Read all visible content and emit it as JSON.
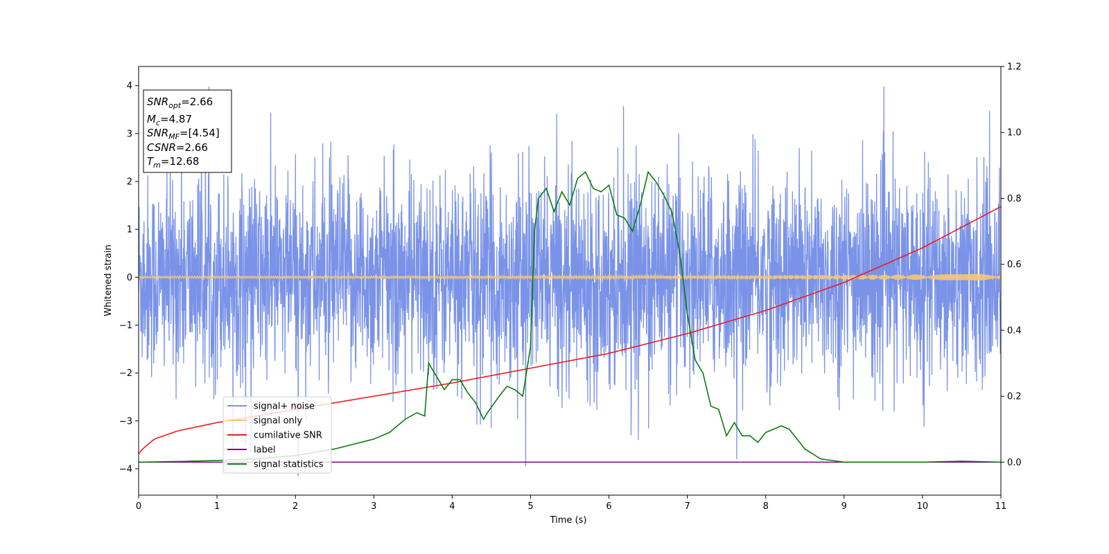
{
  "chart_data": {
    "type": "line",
    "xlabel": "Time (s)",
    "ylabel": "Whitened strain",
    "xlim": [
      0,
      11
    ],
    "ylim": [
      -4.55,
      4.4
    ],
    "y2lim": [
      -0.1,
      1.2
    ],
    "grid": false,
    "legend_position": "lower-left",
    "x_ticks": [
      "0",
      "1",
      "2",
      "3",
      "4",
      "5",
      "6",
      "7",
      "8",
      "9",
      "10",
      "11"
    ],
    "y_ticks": [
      "−4",
      "−3",
      "−2",
      "−1",
      "0",
      "1",
      "2",
      "3",
      "4"
    ],
    "y_tick_values": [
      -4,
      -3,
      -2,
      -1,
      0,
      1,
      2,
      3,
      4
    ],
    "y2_ticks": [
      "0.0",
      "0.2",
      "0.4",
      "0.6",
      "0.8",
      "1.0",
      "1.2"
    ],
    "y2_tick_values": [
      0.0,
      0.2,
      0.4,
      0.6,
      0.8,
      1.0,
      1.2
    ],
    "annotation": {
      "lines": [
        {
          "main": "SNR",
          "sub": "opt",
          "rest": "=2.66"
        },
        {
          "main": "M",
          "sub": "c",
          "rest": "=4.87"
        },
        {
          "main": "SNR",
          "sub": "MF",
          "rest": "=[4.54]"
        },
        {
          "main": "CSNR",
          "sub": "",
          "rest": "=2.66"
        },
        {
          "main": "T",
          "sub": "m",
          "rest": "=12.68"
        }
      ]
    },
    "series": [
      {
        "name": "signal+ noise",
        "axis": "left",
        "color": "#7a93e8",
        "style": "noise",
        "approx_range": [
          -4.15,
          3.98
        ]
      },
      {
        "name": "signal only",
        "axis": "left",
        "color": "#f7c873",
        "style": "thin-oscillation",
        "amplitude_start": 0.02,
        "amplitude_end": 0.07
      },
      {
        "name": "cumilative SNR",
        "axis": "right",
        "color": "#ee1c1c",
        "x": [
          0,
          0.05,
          0.2,
          0.5,
          1,
          2,
          3,
          4,
          5,
          6,
          7,
          8,
          9,
          10,
          11
        ],
        "y": [
          0.025,
          0.04,
          0.07,
          0.095,
          0.12,
          0.16,
          0.2,
          0.24,
          0.285,
          0.33,
          0.39,
          0.46,
          0.545,
          0.65,
          0.775
        ]
      },
      {
        "name": "label",
        "axis": "right",
        "color": "#800080",
        "x": [
          0,
          11
        ],
        "y": [
          0.0,
          0.0
        ]
      },
      {
        "name": "signal statistics",
        "axis": "right",
        "color": "#0a7a0a",
        "x": [
          0,
          0.5,
          1,
          1.5,
          2,
          2.5,
          3,
          3.2,
          3.4,
          3.55,
          3.65,
          3.7,
          3.8,
          3.9,
          4.0,
          4.1,
          4.2,
          4.3,
          4.4,
          4.45,
          4.6,
          4.7,
          4.8,
          4.9,
          5.0,
          5.05,
          5.1,
          5.2,
          5.3,
          5.4,
          5.5,
          5.6,
          5.7,
          5.8,
          5.9,
          6.0,
          6.1,
          6.2,
          6.3,
          6.4,
          6.5,
          6.6,
          6.7,
          6.8,
          6.9,
          7.0,
          7.1,
          7.2,
          7.3,
          7.4,
          7.5,
          7.6,
          7.7,
          7.8,
          7.9,
          8.0,
          8.2,
          8.3,
          8.5,
          8.7,
          9.0,
          9.5,
          10,
          10.5,
          11
        ],
        "y": [
          0.0,
          0.002,
          0.005,
          0.01,
          0.02,
          0.04,
          0.07,
          0.09,
          0.13,
          0.15,
          0.14,
          0.3,
          0.26,
          0.22,
          0.25,
          0.25,
          0.21,
          0.18,
          0.13,
          0.15,
          0.2,
          0.23,
          0.22,
          0.2,
          0.35,
          0.7,
          0.8,
          0.83,
          0.76,
          0.82,
          0.78,
          0.86,
          0.88,
          0.83,
          0.82,
          0.84,
          0.75,
          0.74,
          0.7,
          0.78,
          0.88,
          0.85,
          0.81,
          0.76,
          0.64,
          0.45,
          0.31,
          0.27,
          0.17,
          0.16,
          0.08,
          0.12,
          0.08,
          0.08,
          0.06,
          0.09,
          0.11,
          0.1,
          0.04,
          0.01,
          0.0,
          0.0,
          0.0,
          0.003,
          0.0
        ]
      }
    ]
  }
}
